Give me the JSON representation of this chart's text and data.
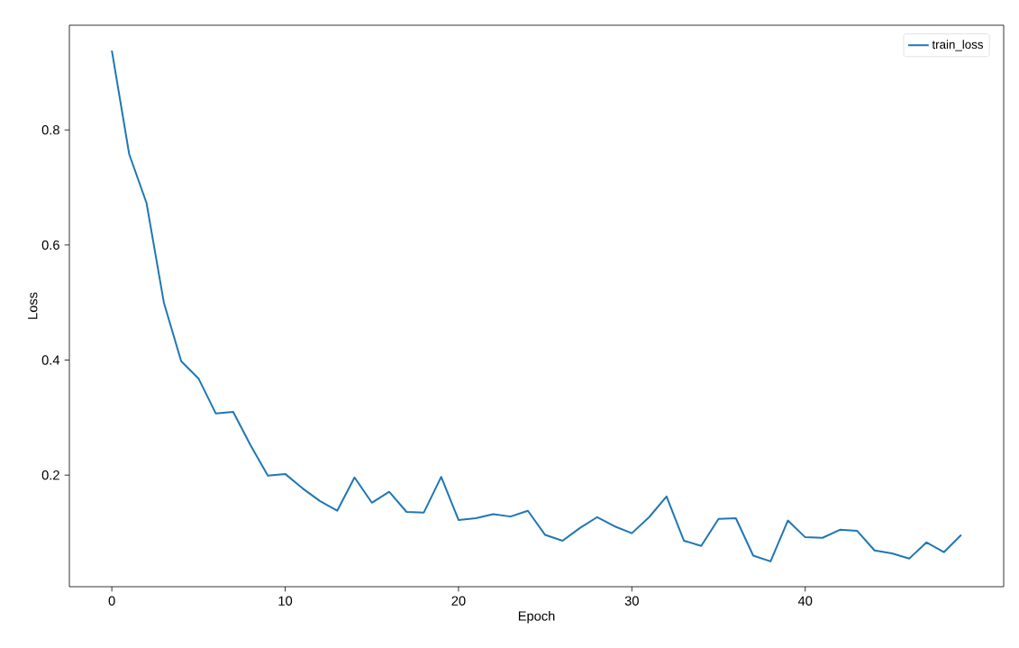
{
  "chart_data": {
    "type": "line",
    "xlabel": "Epoch",
    "ylabel": "Loss",
    "x": [
      0,
      1,
      2,
      3,
      4,
      5,
      6,
      7,
      8,
      9,
      10,
      11,
      12,
      13,
      14,
      15,
      16,
      17,
      18,
      19,
      20,
      21,
      22,
      23,
      24,
      25,
      26,
      27,
      28,
      29,
      30,
      31,
      32,
      33,
      34,
      35,
      36,
      37,
      38,
      39,
      40,
      41,
      42,
      43,
      44,
      45,
      46,
      47,
      48,
      49
    ],
    "series": [
      {
        "name": "train_loss",
        "color": "#1f77b4",
        "values": [
          0.938,
          0.758,
          0.673,
          0.5,
          0.398,
          0.368,
          0.307,
          0.31,
          0.252,
          0.199,
          0.202,
          0.177,
          0.155,
          0.138,
          0.196,
          0.152,
          0.171,
          0.136,
          0.135,
          0.197,
          0.122,
          0.125,
          0.132,
          0.128,
          0.138,
          0.096,
          0.086,
          0.108,
          0.127,
          0.111,
          0.099,
          0.127,
          0.163,
          0.086,
          0.077,
          0.124,
          0.125,
          0.06,
          0.05,
          0.121,
          0.092,
          0.091,
          0.105,
          0.103,
          0.069,
          0.064,
          0.055,
          0.083,
          0.066,
          0.096
        ]
      }
    ],
    "xlim": [
      -2.45,
      51.45
    ],
    "ylim": [
      0.006,
      0.982
    ],
    "xticks": [
      0,
      10,
      20,
      30,
      40
    ],
    "yticks": [
      0.2,
      0.4,
      0.6,
      0.8
    ],
    "legend": "top right"
  }
}
